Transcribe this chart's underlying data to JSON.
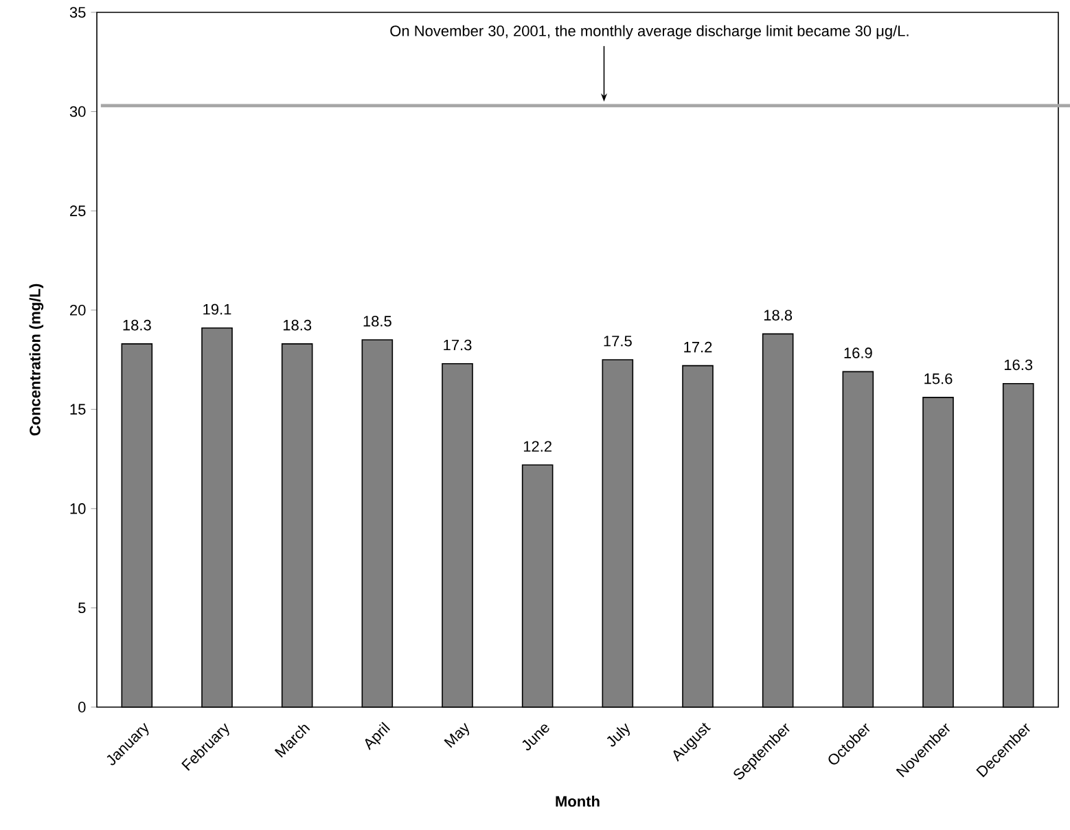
{
  "chart_data": {
    "type": "bar",
    "xlabel": "Month",
    "ylabel": "Concentration (mg/L)",
    "categories": [
      "January",
      "February",
      "March",
      "April",
      "May",
      "June",
      "July",
      "August",
      "September",
      "October",
      "November",
      "December"
    ],
    "values": [
      18.3,
      19.1,
      18.3,
      18.5,
      17.3,
      12.2,
      17.5,
      17.2,
      18.8,
      16.9,
      15.6,
      16.3
    ],
    "color": "#808080",
    "data_labels": true,
    "ylim": [
      0,
      35
    ],
    "yticks": [
      0,
      5,
      10,
      15,
      20,
      25,
      30,
      35
    ],
    "ref_lines": [
      {
        "axis": "y",
        "value": 30.3,
        "color": "#a6a6a6"
      }
    ],
    "annotations": [
      "On November 30, 2001, the monthly average discharge limit became 30 μg/L."
    ]
  }
}
